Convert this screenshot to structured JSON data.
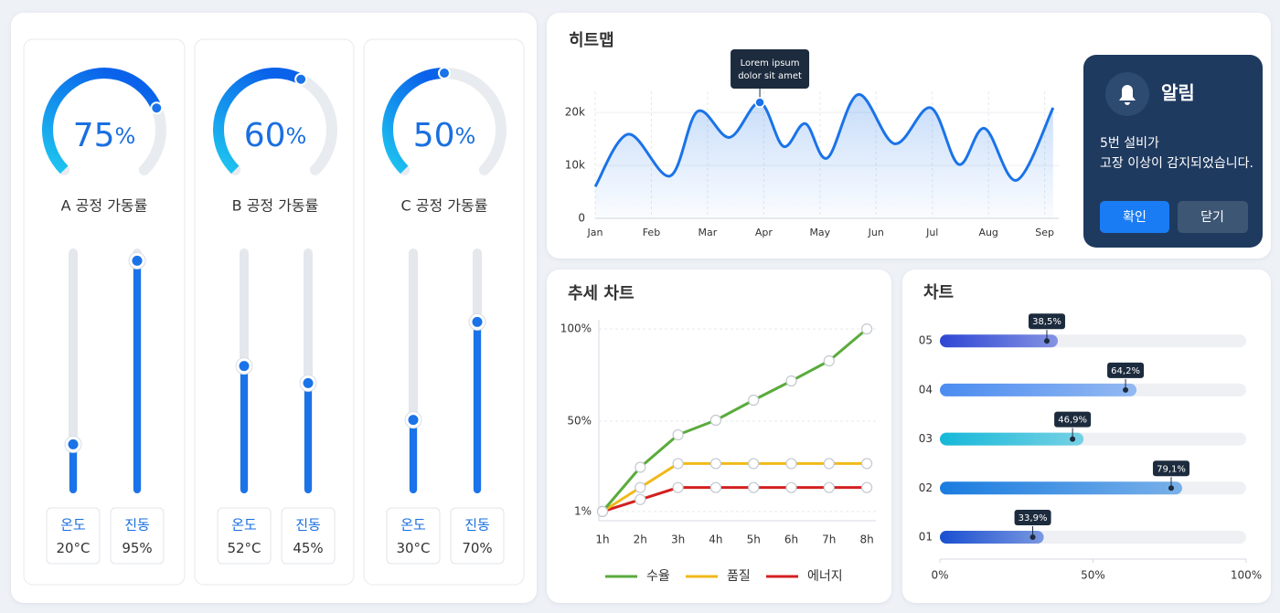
{
  "slider_scale": [
    0,
    100
  ],
  "gauges": [
    {
      "name": "A 공정 가동률",
      "value": 75,
      "unit": "%",
      "sliders": [
        {
          "label": "온도",
          "value": 20,
          "unit": "°C"
        },
        {
          "label": "진동",
          "value": 95,
          "unit": "%"
        }
      ]
    },
    {
      "name": "B 공정 가동률",
      "value": 60,
      "unit": "%",
      "sliders": [
        {
          "label": "온도",
          "value": 52,
          "unit": "°C"
        },
        {
          "label": "진동",
          "value": 45,
          "unit": "%"
        }
      ]
    },
    {
      "name": "C 공정 가동률",
      "value": 50,
      "unit": "%",
      "sliders": [
        {
          "label": "온도",
          "value": 30,
          "unit": "°C"
        },
        {
          "label": "진동",
          "value": 70,
          "unit": "%"
        }
      ]
    }
  ],
  "alert": {
    "title": "알림",
    "message": [
      "5번 설비가",
      "고장 이상이 감지되었습니다."
    ],
    "buttons": [
      "확인",
      "닫기"
    ]
  },
  "chart_data": [
    {
      "type": "line",
      "title": "히트맵",
      "x": [
        0,
        0.59,
        1.33,
        1.82,
        2.39,
        2.93,
        3.35,
        3.74,
        4.13,
        4.68,
        5.33,
        5.97,
        6.47,
        6.93,
        7.5,
        8.15
      ],
      "y": [
        6000,
        15900,
        8000,
        20200,
        15300,
        21900,
        13600,
        17900,
        11400,
        23400,
        14100,
        20900,
        10200,
        17000,
        7200,
        20900
      ],
      "color": "#1a73e8",
      "xlim": [
        0,
        8.25
      ],
      "xticks": [
        {
          "value": 0,
          "label": "Jan"
        },
        {
          "value": 1,
          "label": "Feb"
        },
        {
          "value": 2,
          "label": "Mar"
        },
        {
          "value": 3,
          "label": "Apr"
        },
        {
          "value": 4,
          "label": "May"
        },
        {
          "value": 5,
          "label": "Jun"
        },
        {
          "value": 6,
          "label": "Jul"
        },
        {
          "value": 7,
          "label": "Aug"
        },
        {
          "value": 8,
          "label": "Sep"
        }
      ],
      "ylim": [
        0,
        24000
      ],
      "yticks": [
        0,
        {
          "value": 10000,
          "label": "10k"
        },
        {
          "value": 20000,
          "label": "20k"
        }
      ],
      "grid": true,
      "annotation": [
        "Lorem ipsum",
        "dolor sit amet"
      ]
    },
    {
      "type": "line",
      "title": "추세 차트",
      "categories": [
        "1h",
        "2h",
        "3h",
        "4h",
        "5h",
        "6h",
        "7h",
        "8h"
      ],
      "series": [
        {
          "name": "수율",
          "color": "#5aab3c",
          "values": [
            1,
            25,
            42.6,
            50.5,
            61.4,
            71.8,
            82.7,
            100
          ]
        },
        {
          "name": "품질",
          "color": "#f0b91a",
          "values": [
            1,
            14,
            27,
            27,
            27,
            27,
            27,
            27
          ]
        },
        {
          "name": "에너지",
          "color": "#d42020",
          "values": [
            1,
            7.5,
            14,
            14,
            14,
            14,
            14,
            14
          ]
        }
      ],
      "ylim": [
        -4,
        105
      ],
      "yticks": [
        {
          "value": 1,
          "label": "1%"
        },
        {
          "value": 50,
          "label": "50%"
        },
        {
          "value": 100,
          "label": "100%"
        }
      ],
      "grid": true,
      "legend": "bottom"
    },
    {
      "type": "hbar",
      "title": "차트",
      "categories": [
        "01",
        "02",
        "03",
        "04",
        "05"
      ],
      "values": [
        33.9,
        79.1,
        46.9,
        64.2,
        38.5
      ],
      "value_labels": [
        "33,9%",
        "79,1%",
        "46,9%",
        "64,2%",
        "38,5%"
      ],
      "colors": [
        "#1a4fd0",
        "#1a7ce0",
        "#16b8d8",
        "#4a8cf0",
        "#2e46d4"
      ],
      "xlim": [
        0,
        100
      ],
      "xticks": [
        {
          "value": 0,
          "label": "0%"
        },
        {
          "value": 50,
          "label": "50%"
        },
        {
          "value": 100,
          "label": "100%"
        }
      ]
    }
  ]
}
